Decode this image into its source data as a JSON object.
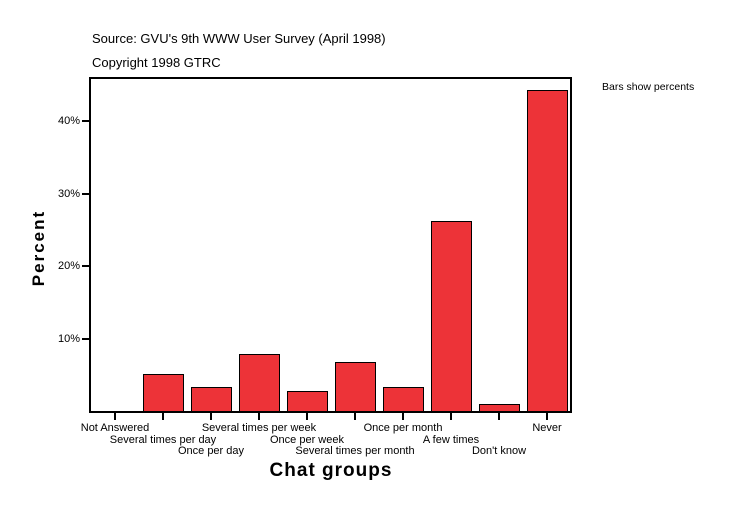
{
  "header": {
    "source": "Source: GVU's 9th WWW User Survey (April 1998)",
    "copyright": "Copyright 1998 GTRC"
  },
  "note": "Bars show percents",
  "colors": {
    "bar_fill": "#ED3338",
    "bar_outline": "#000000",
    "frame": "#000000",
    "text": "#000000",
    "background": "#FFFFFF"
  },
  "chart_data": {
    "type": "bar",
    "title": "",
    "xlabel": "Chat groups",
    "ylabel": "Percent",
    "categories": [
      "Not Answered",
      "Several times per day",
      "Once per day",
      "Several times per week",
      "Once per week",
      "Several times per month",
      "Once per month",
      "A few times",
      "Don't know",
      "Never"
    ],
    "values": [
      0,
      5.1,
      3.3,
      7.8,
      2.7,
      6.8,
      3.3,
      26.2,
      1.0,
      44.3
    ],
    "unit": "percent",
    "yticks": [
      10,
      20,
      30,
      40
    ],
    "ytick_labels": [
      "10%",
      "20%",
      "30%",
      "40%"
    ],
    "ylim": [
      0,
      45.8
    ],
    "grid": false,
    "legend": "none"
  }
}
